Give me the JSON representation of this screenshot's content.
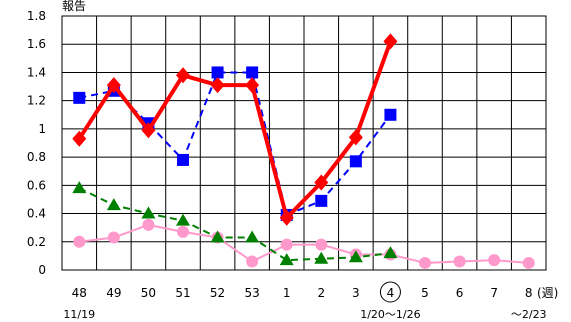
{
  "chart_data": {
    "type": "line",
    "title": "",
    "corner_label": "報告",
    "xlabel": "",
    "ylabel": "",
    "x_unit": "(週)",
    "categories": [
      "48",
      "49",
      "50",
      "51",
      "52",
      "53",
      "1",
      "2",
      "3",
      "4",
      "5",
      "6",
      "7",
      "8"
    ],
    "highlighted_category": "4",
    "ylim": [
      0,
      1.8
    ],
    "yticks": [
      0,
      0.2,
      0.4,
      0.6,
      0.8,
      1,
      1.2,
      1.4,
      1.6,
      1.8
    ],
    "ytick_labels": [
      "0",
      "0.2",
      "0.4",
      "0.6",
      "0.8",
      "1",
      "1.2",
      "1.4",
      "1.6",
      "1.8"
    ],
    "grid": true,
    "x_sublabels": [
      {
        "at": "48",
        "text": "11/19"
      },
      {
        "at": "4",
        "text": "1/20〜1/26"
      },
      {
        "at": "8",
        "text": "〜2/23"
      }
    ],
    "series": [
      {
        "color": "#ff0000",
        "marker": "diamond",
        "line": "solid",
        "values": [
          0.93,
          1.31,
          0.99,
          1.38,
          1.31,
          1.31,
          0.37,
          0.62,
          0.94,
          1.62,
          null,
          null,
          null,
          null
        ]
      },
      {
        "color": "#0000ff",
        "marker": "square",
        "line": "dashed",
        "values": [
          1.22,
          1.27,
          1.04,
          0.78,
          1.4,
          1.4,
          0.39,
          0.49,
          0.77,
          1.1,
          null,
          null,
          null,
          null
        ]
      },
      {
        "color": "#008000",
        "marker": "triangle",
        "line": "dashed",
        "values": [
          0.58,
          0.46,
          0.4,
          0.35,
          0.23,
          0.23,
          0.07,
          0.08,
          0.09,
          0.12,
          null,
          null,
          null,
          null
        ]
      },
      {
        "color": "#ff99cc",
        "marker": "circle",
        "line": "solid",
        "values": [
          0.2,
          0.23,
          0.32,
          0.27,
          0.23,
          0.06,
          0.18,
          0.18,
          0.11,
          0.11,
          0.05,
          0.06,
          0.07,
          0.05
        ]
      }
    ]
  }
}
